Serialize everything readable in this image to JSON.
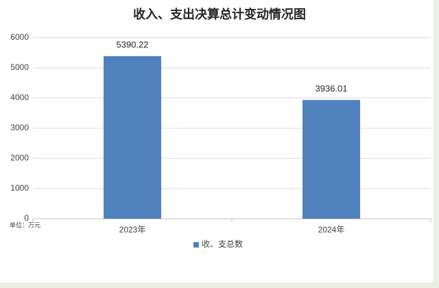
{
  "chart_data": {
    "type": "bar",
    "title": "收入、支出决算总计变动情况图",
    "y_axis_label": "单位：万元",
    "categories": [
      "2023年",
      "2024年"
    ],
    "series": [
      {
        "name": "收、支总数",
        "color": "#4f81bd",
        "values": [
          5390.22,
          3936.01
        ]
      }
    ],
    "ylim": [
      0,
      6000
    ],
    "yticks": [
      0,
      1000,
      2000,
      3000,
      4000,
      5000,
      6000
    ],
    "grid": true,
    "legend": "bottom"
  }
}
